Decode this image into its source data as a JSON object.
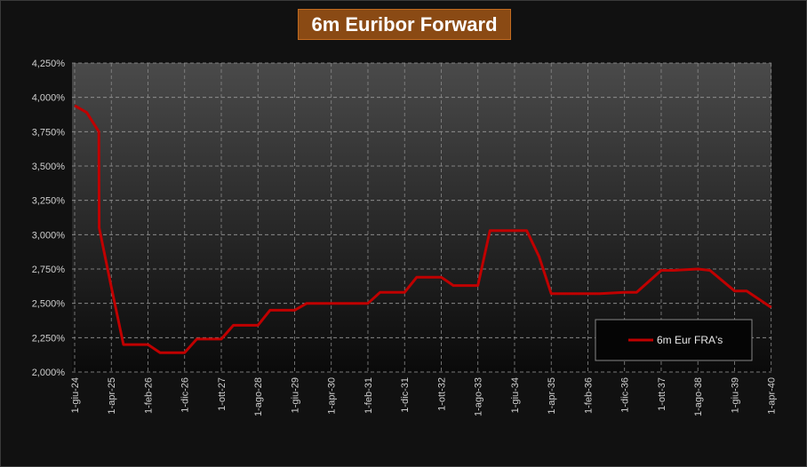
{
  "chart_data": {
    "type": "line",
    "title": "6m Euribor Forward",
    "xlabel": "",
    "ylabel": "",
    "y_ticks": [
      "2,000%",
      "2,250%",
      "2,500%",
      "2,750%",
      "3,000%",
      "3,250%",
      "3,500%",
      "3,750%",
      "4,000%",
      "4,250%"
    ],
    "ylim": [
      2.0,
      4.25
    ],
    "x_ticks": [
      "1-giu-24",
      "1-apr-25",
      "1-feb-26",
      "1-dic-26",
      "1-ott-27",
      "1-ago-28",
      "1-giu-29",
      "1-apr-30",
      "1-feb-31",
      "1-dic-31",
      "1-ott-32",
      "1-ago-33",
      "1-giu-34",
      "1-apr-35",
      "1-feb-36",
      "1-dic-36",
      "1-ott-37",
      "1-ago-38",
      "1-giu-39",
      "1-apr-40"
    ],
    "grid": true,
    "legend_position": "bottom-right",
    "colors": {
      "series": "#c00000",
      "plot_top": "#4a4a4a",
      "plot_bottom": "#0a0a0a"
    },
    "series": [
      {
        "name": "6m Eur FRA's",
        "points": [
          [
            "1-giu-24",
            3.94
          ],
          [
            "1-giu-24+",
            3.89
          ],
          [
            "1-giu-24++",
            3.75
          ],
          [
            "1-apr-25-",
            3.05
          ],
          [
            "1-apr-25",
            2.62
          ],
          [
            "1-apr-25+",
            2.2
          ],
          [
            "1-feb-26",
            2.2
          ],
          [
            "1-feb-26+",
            2.14
          ],
          [
            "1-dic-26",
            2.14
          ],
          [
            "1-dic-26+",
            2.24
          ],
          [
            "1-ott-27",
            2.24
          ],
          [
            "1-ott-27+",
            2.34
          ],
          [
            "1-ago-28",
            2.34
          ],
          [
            "1-ago-28+",
            2.45
          ],
          [
            "1-giu-29",
            2.45
          ],
          [
            "1-giu-29+",
            2.5
          ],
          [
            "1-apr-30",
            2.5
          ],
          [
            "1-feb-31",
            2.5
          ],
          [
            "1-feb-31+",
            2.58
          ],
          [
            "1-dic-31",
            2.58
          ],
          [
            "1-dic-31+",
            2.69
          ],
          [
            "1-ott-32",
            2.69
          ],
          [
            "1-ott-32+",
            2.63
          ],
          [
            "1-ago-33",
            2.63
          ],
          [
            "1-ago-33+",
            3.03
          ],
          [
            "1-giu-34",
            3.03
          ],
          [
            "1-giu-34+",
            3.03
          ],
          [
            "1-apr-35-",
            2.84
          ],
          [
            "1-apr-35",
            2.57
          ],
          [
            "1-feb-36",
            2.57
          ],
          [
            "1-feb-36+",
            2.57
          ],
          [
            "1-dic-36",
            2.58
          ],
          [
            "1-dic-36+",
            2.58
          ],
          [
            "1-ott-37",
            2.74
          ],
          [
            "1-ott-37+",
            2.74
          ],
          [
            "1-ago-38",
            2.75
          ],
          [
            "1-ago-38+",
            2.74
          ],
          [
            "1-giu-39",
            2.59
          ],
          [
            "1-giu-39+",
            2.59
          ],
          [
            "1-apr-40",
            2.47
          ]
        ]
      }
    ]
  }
}
